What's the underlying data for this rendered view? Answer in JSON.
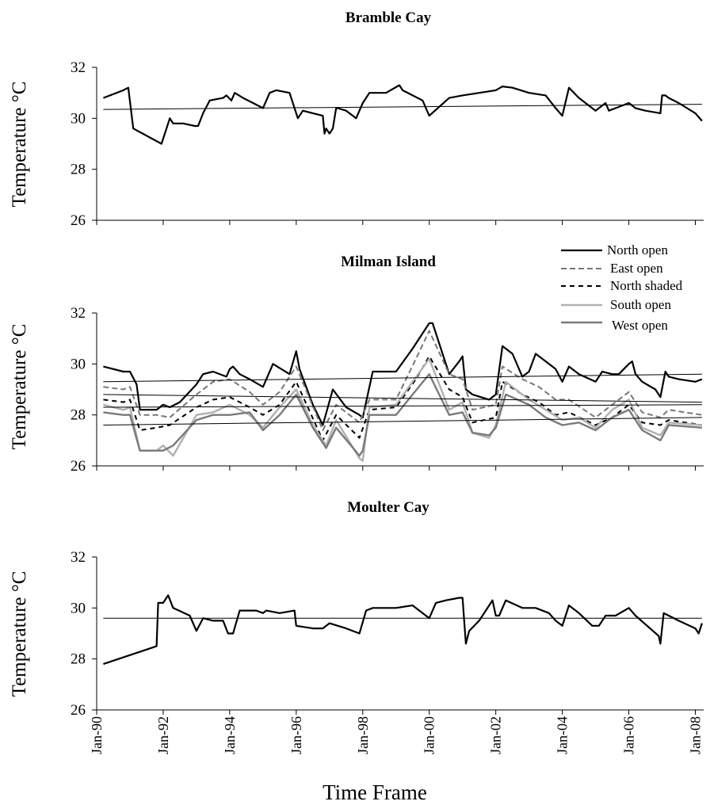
{
  "figure": {
    "x_axis_title": "Time Frame",
    "x_tick_labels": [
      "Jan-90",
      "Jan-92",
      "Jan-94",
      "Jan-96",
      "Jan-98",
      "Jan-00",
      "Jan-02",
      "Jan-04",
      "Jan-06",
      "Jan-08"
    ],
    "y_tick_labels": [
      "32",
      "30",
      "28",
      "26"
    ]
  },
  "chart_data": [
    {
      "type": "line",
      "title": "Bramble Cay",
      "ylabel": "Temperature °C",
      "xlabel": "",
      "xlim": [
        1990.0,
        2008.25
      ],
      "ylim": [
        26,
        32
      ],
      "yticks": [
        26,
        28,
        30,
        32
      ],
      "grid": false,
      "series": [
        {
          "color": "#000000",
          "dash": "solid",
          "width": 2.2,
          "x": [
            1990.2,
            1990.6,
            1990.8,
            1990.95,
            1991.1,
            1991.95,
            1992.1,
            1992.2,
            1992.3,
            1992.6,
            1992.95,
            1993.05,
            1993.2,
            1993.4,
            1993.8,
            1993.9,
            1994.05,
            1994.15,
            1994.4,
            1994.7,
            1995.0,
            1995.2,
            1995.4,
            1995.8,
            1995.95,
            1996.05,
            1996.2,
            1996.5,
            1996.8,
            1996.85,
            1996.9,
            1997.0,
            1997.1,
            1997.2,
            1997.25,
            1997.5,
            1997.8,
            1998.0,
            1998.2,
            1998.4,
            1998.7,
            1999.1,
            1999.2,
            1999.5,
            1999.8,
            2000.0,
            2000.6,
            2001.0,
            2001.5,
            2002.0,
            2002.2,
            2002.5,
            2003.0,
            2003.5,
            2003.8,
            2004.0,
            2004.2,
            2004.5,
            2005.0,
            2005.3,
            2005.4,
            2005.6,
            2006.0,
            2006.2,
            2006.5,
            2006.95,
            2007.0,
            2007.1,
            2007.2,
            2007.5,
            2008.0,
            2008.2
          ],
          "y": [
            30.8,
            31.0,
            31.1,
            31.2,
            29.6,
            29.0,
            29.6,
            30.0,
            29.8,
            29.8,
            29.7,
            29.7,
            30.2,
            30.7,
            30.8,
            30.9,
            30.7,
            31.0,
            30.8,
            30.6,
            30.4,
            31.0,
            31.1,
            31.0,
            30.4,
            30.0,
            30.3,
            30.2,
            30.1,
            29.4,
            29.6,
            29.4,
            29.6,
            30.4,
            30.4,
            30.3,
            30.0,
            30.6,
            31.0,
            31.0,
            31.0,
            31.3,
            31.1,
            30.9,
            30.7,
            30.1,
            30.8,
            30.9,
            31.0,
            31.1,
            31.25,
            31.2,
            31.0,
            30.9,
            30.4,
            30.1,
            31.2,
            30.8,
            30.3,
            30.6,
            30.3,
            30.4,
            30.6,
            30.4,
            30.3,
            30.2,
            30.9,
            30.9,
            30.8,
            30.6,
            30.2,
            29.9
          ]
        },
        {
          "color": "#000000",
          "dash": "solid",
          "width": 1.0,
          "x": [
            1990.2,
            2008.2
          ],
          "y": [
            30.35,
            30.55
          ]
        }
      ]
    },
    {
      "type": "line",
      "title": "Milman Island",
      "ylabel": "Temperature °C",
      "xlabel": "",
      "xlim": [
        1990.0,
        2008.25
      ],
      "ylim": [
        26,
        32
      ],
      "yticks": [
        26,
        28,
        30,
        32
      ],
      "grid": false,
      "legend": {
        "position": "top-right",
        "entries": [
          "North open",
          "East open",
          "North shaded",
          "South open",
          "West open"
        ]
      },
      "series": [
        {
          "name": "North open",
          "color": "#000000",
          "dash": "solid",
          "width": 2.2,
          "x": [
            1990.2,
            1990.8,
            1991.0,
            1991.2,
            1991.3,
            1991.8,
            1992.0,
            1992.2,
            1992.5,
            1993.0,
            1993.2,
            1993.5,
            1993.9,
            1994.0,
            1994.1,
            1994.3,
            1994.6,
            1995.0,
            1995.3,
            1995.8,
            1996.0,
            1996.1,
            1996.5,
            1996.8,
            1997.1,
            1997.5,
            1997.9,
            1998.0,
            1998.3,
            1999.0,
            1999.5,
            2000.0,
            2000.1,
            2000.6,
            2000.9,
            2001.0,
            2001.1,
            2001.3,
            2001.8,
            2002.0,
            2002.2,
            2002.5,
            2002.8,
            2003.0,
            2003.2,
            2003.6,
            2003.8,
            2004.0,
            2004.2,
            2004.5,
            2005.0,
            2005.2,
            2005.5,
            2005.7,
            2006.0,
            2006.1,
            2006.2,
            2006.4,
            2006.8,
            2006.95,
            2007.1,
            2007.2,
            2007.5,
            2008.0,
            2008.2
          ],
          "y": [
            29.9,
            29.7,
            29.7,
            29.2,
            28.2,
            28.2,
            28.4,
            28.3,
            28.5,
            29.2,
            29.6,
            29.7,
            29.5,
            29.8,
            29.9,
            29.6,
            29.4,
            29.1,
            30.0,
            29.6,
            30.5,
            29.8,
            28.4,
            27.6,
            29.0,
            28.3,
            28.0,
            27.9,
            29.7,
            29.7,
            30.6,
            31.6,
            31.6,
            29.6,
            30.1,
            30.3,
            29.0,
            28.8,
            28.6,
            28.8,
            30.7,
            30.4,
            29.5,
            29.7,
            30.4,
            30.0,
            29.8,
            29.3,
            29.9,
            29.6,
            29.3,
            29.7,
            29.6,
            29.6,
            30.0,
            30.1,
            29.6,
            29.3,
            29.0,
            28.7,
            29.7,
            29.5,
            29.4,
            29.3,
            29.4
          ]
        },
        {
          "name": "East open",
          "color": "#777777",
          "dash": "7,4",
          "width": 2.0,
          "x": [
            1990.2,
            1990.8,
            1991.0,
            1991.3,
            1991.8,
            1992.2,
            1993.0,
            1993.5,
            1994.0,
            1994.6,
            1995.0,
            1995.5,
            1996.0,
            1996.8,
            1997.2,
            1997.9,
            1998.2,
            1999.0,
            1999.6,
            2000.0,
            2000.6,
            2001.0,
            2001.3,
            2002.0,
            2002.2,
            2002.8,
            2003.3,
            2003.8,
            2004.2,
            2005.0,
            2005.5,
            2006.0,
            2006.4,
            2006.95,
            2007.2,
            2008.2
          ],
          "y": [
            29.1,
            29.0,
            29.1,
            28.0,
            28.0,
            27.9,
            28.8,
            29.3,
            29.4,
            28.9,
            28.4,
            28.9,
            29.9,
            27.4,
            28.4,
            27.7,
            28.6,
            28.6,
            30.2,
            31.3,
            29.6,
            29.4,
            28.2,
            28.4,
            29.9,
            29.4,
            29.1,
            28.6,
            28.6,
            27.9,
            28.4,
            28.9,
            28.1,
            27.9,
            28.2,
            28.0
          ]
        },
        {
          "name": "North shaded",
          "color": "#000000",
          "dash": "6,5",
          "width": 2.0,
          "x": [
            1990.2,
            1990.8,
            1991.0,
            1991.3,
            1991.8,
            1992.2,
            1993.0,
            1993.5,
            1994.0,
            1994.6,
            1995.0,
            1995.5,
            1996.0,
            1996.8,
            1997.2,
            1997.9,
            1998.2,
            1999.0,
            1999.6,
            2000.0,
            2000.6,
            2001.0,
            2001.3,
            2002.0,
            2002.2,
            2002.8,
            2003.3,
            2003.8,
            2004.2,
            2005.0,
            2005.5,
            2006.0,
            2006.4,
            2006.95,
            2007.2,
            2008.2
          ],
          "y": [
            28.6,
            28.5,
            28.6,
            27.4,
            27.5,
            27.6,
            28.3,
            28.6,
            28.7,
            28.3,
            28.0,
            28.4,
            29.3,
            27.0,
            28.0,
            27.1,
            28.2,
            28.3,
            29.4,
            30.3,
            29.0,
            28.7,
            27.7,
            27.9,
            29.3,
            28.8,
            28.5,
            28.0,
            28.1,
            27.6,
            27.9,
            28.4,
            27.7,
            27.6,
            27.8,
            27.6
          ]
        },
        {
          "name": "South open",
          "color": "#b0b0b0",
          "dash": "solid",
          "width": 2.4,
          "x": [
            1990.2,
            1990.8,
            1991.0,
            1991.3,
            1991.8,
            1992.0,
            1992.3,
            1993.0,
            1993.5,
            1994.0,
            1994.6,
            1995.0,
            1995.5,
            1996.0,
            1996.5,
            1996.9,
            1997.2,
            1997.9,
            1998.0,
            1998.2,
            1999.0,
            1999.5,
            2000.0,
            2000.6,
            2001.0,
            2001.3,
            2001.8,
            2002.0,
            2002.3,
            2003.0,
            2003.5,
            2004.0,
            2004.5,
            2005.0,
            2005.5,
            2006.0,
            2006.4,
            2006.95,
            2007.2,
            2008.2
          ],
          "y": [
            28.4,
            28.2,
            28.3,
            26.6,
            26.6,
            26.8,
            26.4,
            28.0,
            28.1,
            28.4,
            28.0,
            27.5,
            28.3,
            29.0,
            27.6,
            26.8,
            27.8,
            26.3,
            26.2,
            28.3,
            28.4,
            29.3,
            30.2,
            28.2,
            28.5,
            27.3,
            27.1,
            27.6,
            29.3,
            28.6,
            28.2,
            27.8,
            27.9,
            27.5,
            28.2,
            28.6,
            27.5,
            27.2,
            27.7,
            27.6
          ]
        },
        {
          "name": "West open",
          "color": "#7a7a7a",
          "dash": "solid",
          "width": 2.4,
          "x": [
            1990.2,
            1990.8,
            1991.0,
            1991.3,
            1991.8,
            1992.0,
            1992.3,
            1993.0,
            1993.5,
            1994.0,
            1994.6,
            1995.0,
            1995.5,
            1996.0,
            1996.5,
            1996.9,
            1997.2,
            1997.9,
            1998.0,
            1998.2,
            1999.0,
            1999.5,
            2000.0,
            2000.6,
            2001.0,
            2001.3,
            2001.8,
            2002.0,
            2002.3,
            2003.0,
            2003.5,
            2004.0,
            2004.5,
            2005.0,
            2005.5,
            2006.0,
            2006.4,
            2006.95,
            2007.2,
            2008.2
          ],
          "y": [
            28.1,
            28.0,
            28.0,
            26.6,
            26.6,
            26.6,
            26.8,
            27.8,
            28.0,
            28.0,
            28.1,
            27.4,
            28.0,
            28.8,
            27.5,
            26.7,
            27.5,
            26.4,
            26.6,
            28.0,
            28.0,
            28.8,
            29.6,
            28.0,
            28.1,
            27.3,
            27.2,
            27.5,
            28.8,
            28.4,
            27.9,
            27.6,
            27.7,
            27.4,
            27.9,
            28.2,
            27.4,
            27.0,
            27.6,
            27.5
          ]
        },
        {
          "color": "#000000",
          "dash": "solid",
          "width": 1.0,
          "x": [
            1990.2,
            2008.2
          ],
          "y": [
            29.3,
            29.6
          ]
        },
        {
          "color": "#000000",
          "dash": "solid",
          "width": 1.0,
          "x": [
            1990.2,
            2008.2
          ],
          "y": [
            28.8,
            28.5
          ]
        },
        {
          "color": "#000000",
          "dash": "solid",
          "width": 1.0,
          "x": [
            1990.2,
            2008.2
          ],
          "y": [
            28.3,
            28.4
          ]
        },
        {
          "color": "#000000",
          "dash": "solid",
          "width": 1.0,
          "x": [
            1990.2,
            2008.2
          ],
          "y": [
            27.6,
            27.9
          ]
        }
      ]
    },
    {
      "type": "line",
      "title": "Moulter Cay",
      "ylabel": "Temperature °C",
      "xlabel": "Time Frame",
      "xlim": [
        1990.0,
        2008.25
      ],
      "ylim": [
        26,
        32
      ],
      "yticks": [
        26,
        28,
        30,
        32
      ],
      "grid": false,
      "series": [
        {
          "color": "#000000",
          "dash": "solid",
          "width": 2.2,
          "x": [
            1990.2,
            1991.8,
            1991.85,
            1992.0,
            1992.1,
            1992.15,
            1992.3,
            1992.8,
            1993.0,
            1993.2,
            1993.5,
            1993.8,
            1993.95,
            1994.1,
            1994.3,
            1994.8,
            1995.0,
            1995.1,
            1995.5,
            1995.95,
            1996.0,
            1996.5,
            1996.8,
            1997.0,
            1997.5,
            1997.9,
            1998.1,
            1998.3,
            1999.0,
            1999.5,
            2000.0,
            2000.2,
            2000.5,
            2000.9,
            2001.0,
            2001.1,
            2001.2,
            2001.5,
            2001.9,
            2002.0,
            2002.1,
            2002.3,
            2002.8,
            2003.2,
            2003.6,
            2003.8,
            2004.0,
            2004.2,
            2004.5,
            2004.9,
            2005.1,
            2005.3,
            2005.6,
            2006.0,
            2006.2,
            2006.9,
            2006.95,
            2007.05,
            2007.2,
            2007.5,
            2008.0,
            2008.1,
            2008.2
          ],
          "y": [
            27.8,
            28.5,
            30.2,
            30.2,
            30.4,
            30.5,
            30.0,
            29.7,
            29.1,
            29.6,
            29.5,
            29.5,
            29.0,
            29.0,
            29.9,
            29.9,
            29.8,
            29.9,
            29.8,
            29.9,
            29.3,
            29.2,
            29.2,
            29.4,
            29.2,
            29.0,
            29.9,
            30.0,
            30.0,
            30.1,
            29.6,
            30.2,
            30.3,
            30.4,
            30.4,
            28.6,
            29.1,
            29.5,
            30.3,
            29.7,
            29.7,
            30.3,
            30.0,
            30.0,
            29.8,
            29.5,
            29.3,
            30.1,
            29.8,
            29.3,
            29.3,
            29.7,
            29.7,
            30.0,
            29.7,
            28.9,
            28.6,
            29.8,
            29.7,
            29.5,
            29.2,
            29.0,
            29.4
          ]
        },
        {
          "color": "#000000",
          "dash": "solid",
          "width": 1.0,
          "x": [
            1990.2,
            2008.2
          ],
          "y": [
            29.6,
            29.6
          ]
        }
      ]
    }
  ]
}
